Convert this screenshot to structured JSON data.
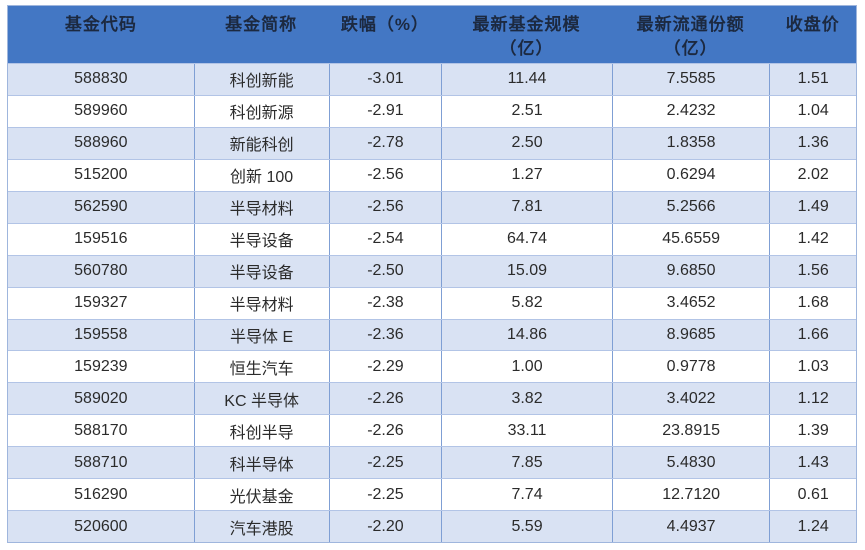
{
  "colors": {
    "header_bg": "#4377c4",
    "header_text": "#1c2940",
    "row_alt_bg": "#d9e2f3",
    "row_bg": "#ffffff",
    "body_text": "#2b2b2b",
    "border_vertical": "#7f9fd4",
    "border_horizontal": "#b2c4e6",
    "outer_border": "#9fb6dd"
  },
  "table": {
    "columns": [
      {
        "id": "fund-code",
        "label": "基金代码"
      },
      {
        "id": "fund-name",
        "label": "基金简称"
      },
      {
        "id": "decline-pct",
        "label": "跌幅（%）"
      },
      {
        "id": "latest-fund-scale",
        "label": "最新基金规模\n（亿）"
      },
      {
        "id": "latest-circulating-shares",
        "label": "最新流通份额\n（亿）"
      },
      {
        "id": "closing-price",
        "label": "收盘价"
      }
    ],
    "rows": [
      [
        "588830",
        "科创新能",
        "-3.01",
        "11.44",
        "7.5585",
        "1.51"
      ],
      [
        "589960",
        "科创新源",
        "-2.91",
        "2.51",
        "2.4232",
        "1.04"
      ],
      [
        "588960",
        "新能科创",
        "-2.78",
        "2.50",
        "1.8358",
        "1.36"
      ],
      [
        "515200",
        "创新 100",
        "-2.56",
        "1.27",
        "0.6294",
        "2.02"
      ],
      [
        "562590",
        "半导材料",
        "-2.56",
        "7.81",
        "5.2566",
        "1.49"
      ],
      [
        "159516",
        "半导设备",
        "-2.54",
        "64.74",
        "45.6559",
        "1.42"
      ],
      [
        "560780",
        "半导设备",
        "-2.50",
        "15.09",
        "9.6850",
        "1.56"
      ],
      [
        "159327",
        "半导材料",
        "-2.38",
        "5.82",
        "3.4652",
        "1.68"
      ],
      [
        "159558",
        "半导体 E",
        "-2.36",
        "14.86",
        "8.9685",
        "1.66"
      ],
      [
        "159239",
        "恒生汽车",
        "-2.29",
        "1.00",
        "0.9778",
        "1.03"
      ],
      [
        "589020",
        "KC 半导体",
        "-2.26",
        "3.82",
        "3.4022",
        "1.12"
      ],
      [
        "588170",
        "科创半导",
        "-2.26",
        "33.11",
        "23.8915",
        "1.39"
      ],
      [
        "588710",
        "科半导体",
        "-2.25",
        "7.85",
        "5.4830",
        "1.43"
      ],
      [
        "516290",
        "光伏基金",
        "-2.25",
        "7.74",
        "12.7120",
        "0.61"
      ],
      [
        "520600",
        "汽车港股",
        "-2.20",
        "5.59",
        "4.4937",
        "1.24"
      ]
    ]
  }
}
